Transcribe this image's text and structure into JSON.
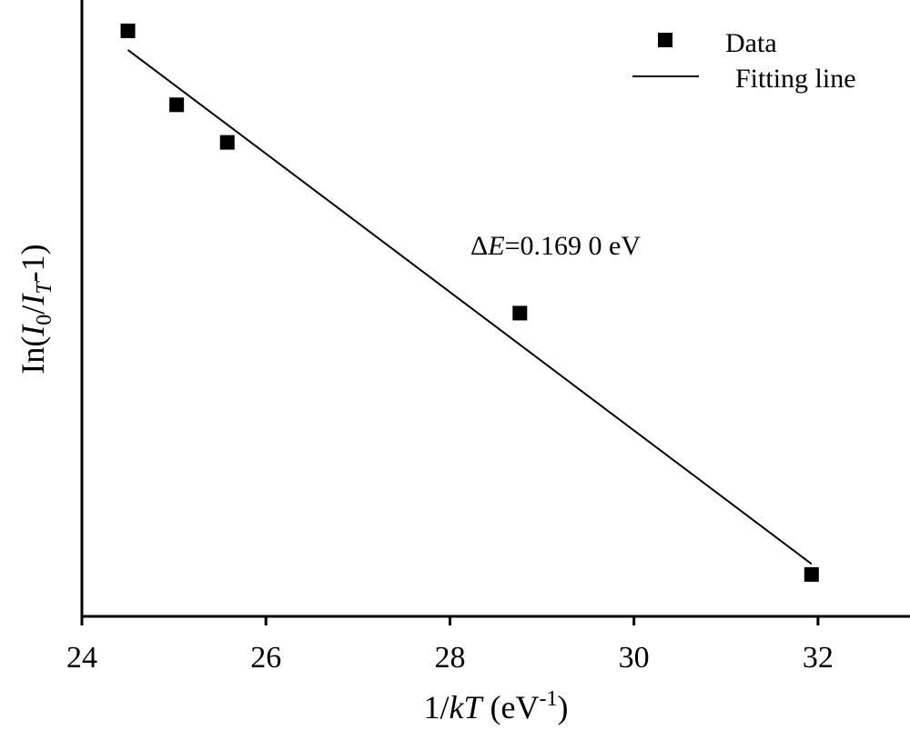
{
  "chart_data": {
    "type": "scatter",
    "xlabel": {
      "pre": "1/",
      "italic": "kT",
      "post": " (eV",
      "sup": "-1",
      "close": ")"
    },
    "ylabel": {
      "pre": "In(",
      "i0": "I",
      "sub0": "0",
      "slash": "/",
      "it": "I",
      "subT": "T",
      "post": "-1)"
    },
    "xlim": [
      24,
      33
    ],
    "ylim": [
      0,
      1
    ],
    "x_ticks": [
      24,
      26,
      28,
      30,
      32
    ],
    "x_tick_labels": [
      "24",
      "26",
      "28",
      "30",
      "32"
    ],
    "y_ticks": [],
    "grid": false,
    "legend_position": "top-right",
    "series": [
      {
        "name": "Data",
        "kind": "points",
        "marker": "square",
        "color": "#000000",
        "x": [
          24.5,
          25.03,
          25.58,
          28.76,
          31.93
        ],
        "y": [
          0.95,
          0.83,
          0.769,
          0.492,
          0.068
        ]
      },
      {
        "name": "Fitting line",
        "kind": "line",
        "color": "#000000",
        "x": [
          24.5,
          31.93
        ],
        "y": [
          0.919,
          0.085
        ]
      }
    ],
    "annotation": {
      "delta": "Δ",
      "italic": "E",
      "text": "=0.169 0 eV"
    }
  }
}
